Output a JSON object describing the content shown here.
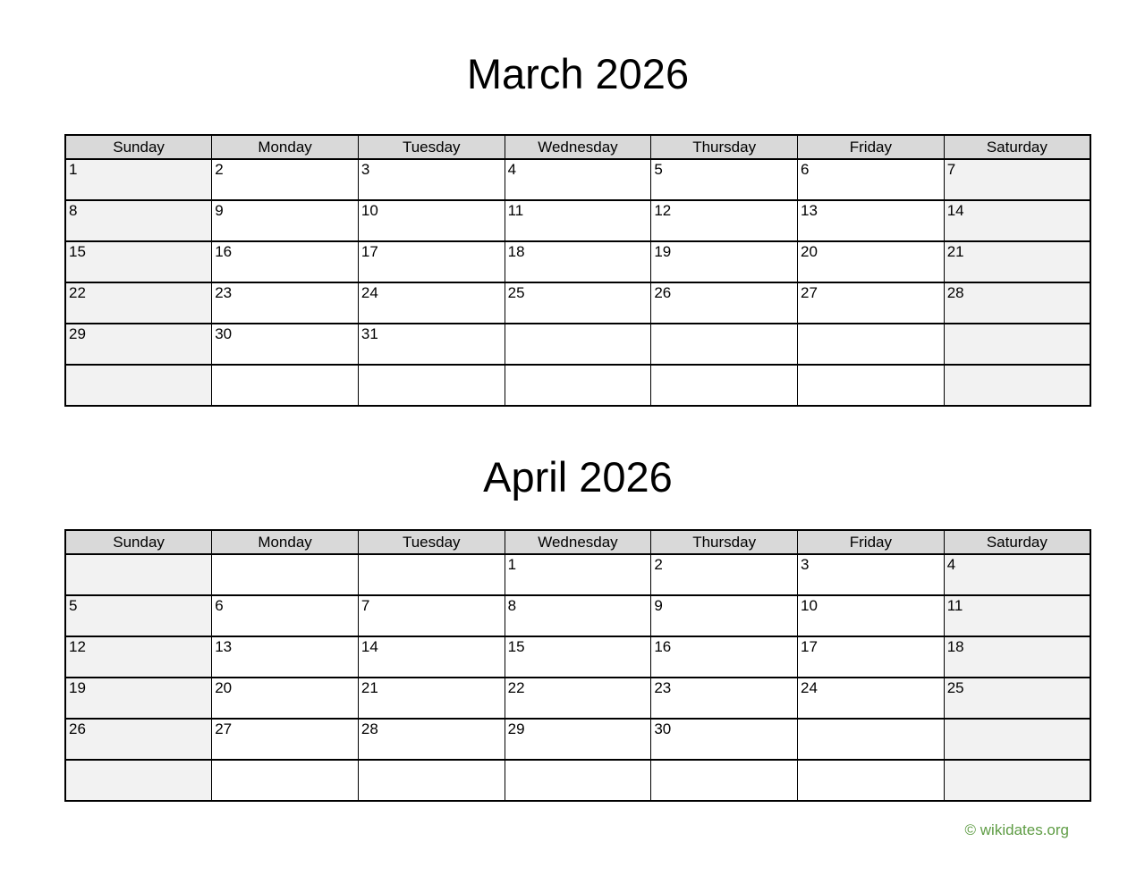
{
  "months": [
    {
      "title": "March 2026",
      "weekdays": [
        "Sunday",
        "Monday",
        "Tuesday",
        "Wednesday",
        "Thursday",
        "Friday",
        "Saturday"
      ],
      "weeks": [
        [
          "1",
          "2",
          "3",
          "4",
          "5",
          "6",
          "7"
        ],
        [
          "8",
          "9",
          "10",
          "11",
          "12",
          "13",
          "14"
        ],
        [
          "15",
          "16",
          "17",
          "18",
          "19",
          "20",
          "21"
        ],
        [
          "22",
          "23",
          "24",
          "25",
          "26",
          "27",
          "28"
        ],
        [
          "29",
          "30",
          "31",
          "",
          "",
          "",
          ""
        ],
        [
          "",
          "",
          "",
          "",
          "",
          "",
          ""
        ]
      ]
    },
    {
      "title": "April 2026",
      "weekdays": [
        "Sunday",
        "Monday",
        "Tuesday",
        "Wednesday",
        "Thursday",
        "Friday",
        "Saturday"
      ],
      "weeks": [
        [
          "",
          "",
          "",
          "1",
          "2",
          "3",
          "4"
        ],
        [
          "5",
          "6",
          "7",
          "8",
          "9",
          "10",
          "11"
        ],
        [
          "12",
          "13",
          "14",
          "15",
          "16",
          "17",
          "18"
        ],
        [
          "19",
          "20",
          "21",
          "22",
          "23",
          "24",
          "25"
        ],
        [
          "26",
          "27",
          "28",
          "29",
          "30",
          "",
          ""
        ],
        [
          "",
          "",
          "",
          "",
          "",
          "",
          ""
        ]
      ]
    }
  ],
  "footer": {
    "copyright": "© wikidates.org"
  },
  "colors": {
    "header_bg": "#d9d9d9",
    "weekend_bg": "#f2f2f2",
    "weekday_bg": "#ffffff",
    "border": "#000000",
    "footer_green": "#5e9c44"
  }
}
